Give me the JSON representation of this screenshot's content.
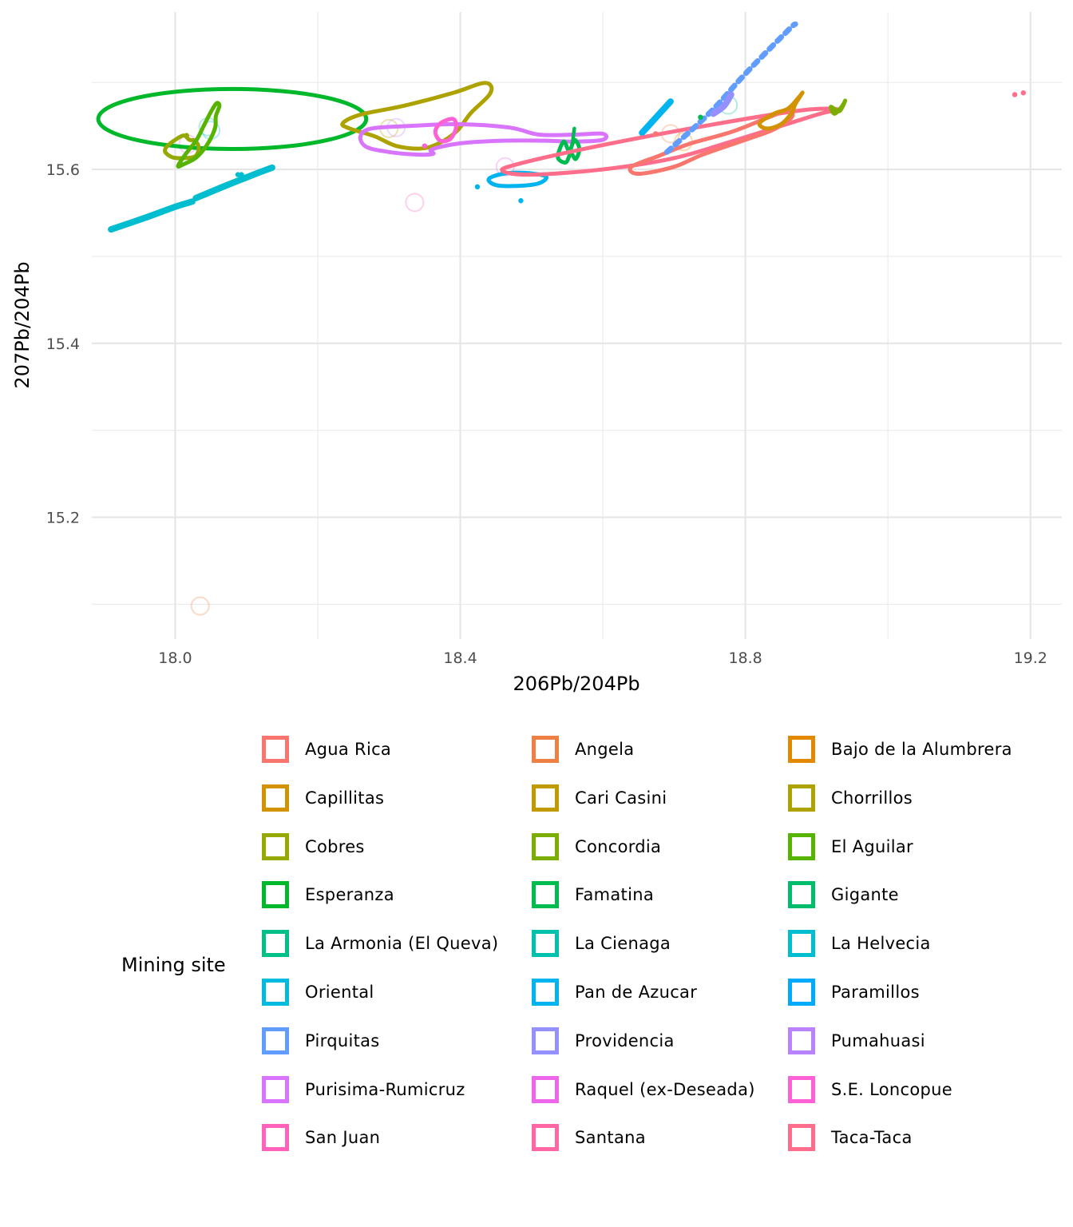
{
  "chart_data": {
    "type": "scatter",
    "subtype": "density-contour",
    "title": "",
    "xlabel": "206Pb/204Pb",
    "ylabel": "207Pb/204Pb",
    "xlim": [
      17.883,
      19.244
    ],
    "ylim": [
      15.06,
      15.781
    ],
    "x_ticks": [
      18.0,
      18.4,
      18.8,
      19.2
    ],
    "x_tick_labels": [
      "18.0",
      "18.4",
      "18.8",
      "19.2"
    ],
    "x_minor": [
      18.2,
      18.6,
      19.0
    ],
    "y_ticks": [
      15.2,
      15.4,
      15.6
    ],
    "y_tick_labels": [
      "15.2",
      "15.4",
      "15.6"
    ],
    "y_minor": [
      15.1,
      15.3,
      15.5,
      15.7
    ],
    "grid": true,
    "legend": {
      "title": "Mining site",
      "position": "bottom",
      "ncol": 3,
      "entries": [
        {
          "name": "Agua Rica",
          "color": "#F8766D"
        },
        {
          "name": "Angela",
          "color": "#EE8044"
        },
        {
          "name": "Bajo de la Alumbrera",
          "color": "#E38900"
        },
        {
          "name": "Capillitas",
          "color": "#D39200"
        },
        {
          "name": "Cari Casini",
          "color": "#C19A00"
        },
        {
          "name": "Chorrillos",
          "color": "#ADA200"
        },
        {
          "name": "Cobres",
          "color": "#95A900"
        },
        {
          "name": "Concordia",
          "color": "#7BAE00"
        },
        {
          "name": "El Aguilar",
          "color": "#56B300"
        },
        {
          "name": "Esperanza",
          "color": "#00B82A"
        },
        {
          "name": "Famatina",
          "color": "#00BB4E"
        },
        {
          "name": "Gigante",
          "color": "#00BD6A"
        },
        {
          "name": "La Armonia (El Queva)",
          "color": "#00BF87"
        },
        {
          "name": "La Cienaga",
          "color": "#00C0AE"
        },
        {
          "name": "La Helvecia",
          "color": "#00BDD0"
        },
        {
          "name": "Oriental",
          "color": "#00BAE0"
        },
        {
          "name": "Pan de Azucar",
          "color": "#00B4EF"
        },
        {
          "name": "Paramillos",
          "color": "#00ABFD"
        },
        {
          "name": "Pirquitas",
          "color": "#619CFF"
        },
        {
          "name": "Providencia",
          "color": "#9590FF"
        },
        {
          "name": "Pumahuasi",
          "color": "#B983FF"
        },
        {
          "name": "Purisima-Rumicruz",
          "color": "#D874FD"
        },
        {
          "name": "Raquel (ex-Deseada)",
          "color": "#EE67EB"
        },
        {
          "name": "S.E. Loncopue",
          "color": "#FC61D5"
        },
        {
          "name": "San Juan",
          "color": "#FF62BC"
        },
        {
          "name": "Santana",
          "color": "#FF67A4"
        },
        {
          "name": "Taca-Taca",
          "color": "#FE6E8A"
        }
      ]
    },
    "series": [
      {
        "name": "Esperanza",
        "kind": "ellipse",
        "center": [
          18.08,
          15.658
        ],
        "radii": [
          0.188,
          0.0345
        ]
      },
      {
        "name": "La Helvecia",
        "kind": "thick",
        "points": [
          [
            17.91,
            15.531
          ],
          [
            17.96,
            15.545
          ],
          [
            18.0,
            15.557
          ],
          [
            18.024,
            15.563
          ]
        ]
      },
      {
        "name": "La Helvecia",
        "kind": "thick",
        "points": [
          [
            18.029,
            15.567
          ],
          [
            18.07,
            15.581
          ],
          [
            18.11,
            15.594
          ],
          [
            18.136,
            15.602
          ]
        ]
      },
      {
        "name": "La Helvecia",
        "kind": "dot",
        "points": [
          [
            18.088,
            15.594
          ],
          [
            18.093,
            15.594
          ]
        ]
      },
      {
        "name": "Cobres",
        "kind": "loop",
        "points": [
          [
            17.988,
            15.626
          ],
          [
            18.0,
            15.634
          ],
          [
            18.012,
            15.639
          ],
          [
            18.02,
            15.634
          ],
          [
            18.028,
            15.633
          ],
          [
            18.033,
            15.625
          ],
          [
            18.028,
            15.615
          ],
          [
            18.012,
            15.613
          ],
          [
            17.996,
            15.614
          ],
          [
            17.986,
            15.62
          ],
          [
            17.988,
            15.626
          ]
        ]
      },
      {
        "name": "El Aguilar",
        "kind": "loop",
        "points": [
          [
            18.004,
            15.604
          ],
          [
            18.015,
            15.618
          ],
          [
            18.03,
            15.634
          ],
          [
            18.04,
            15.65
          ],
          [
            18.05,
            15.666
          ],
          [
            18.058,
            15.676
          ],
          [
            18.062,
            15.673
          ],
          [
            18.057,
            15.661
          ],
          [
            18.056,
            15.648
          ],
          [
            18.046,
            15.63
          ],
          [
            18.03,
            15.614
          ],
          [
            18.012,
            15.606
          ],
          [
            18.004,
            15.604
          ]
        ]
      },
      {
        "name": "Cobres",
        "kind": "dot",
        "points": [
          [
            18.016,
            15.639
          ]
        ]
      },
      {
        "name": "Chorrillos",
        "kind": "loop",
        "points": [
          [
            18.235,
            15.653
          ],
          [
            18.26,
            15.663
          ],
          [
            18.32,
            15.673
          ],
          [
            18.39,
            15.688
          ],
          [
            18.43,
            15.699
          ],
          [
            18.443,
            15.696
          ],
          [
            18.44,
            15.685
          ],
          [
            18.415,
            15.665
          ],
          [
            18.395,
            15.644
          ],
          [
            18.37,
            15.63
          ],
          [
            18.345,
            15.624
          ],
          [
            18.31,
            15.627
          ],
          [
            18.28,
            15.638
          ],
          [
            18.245,
            15.647
          ],
          [
            18.235,
            15.653
          ]
        ]
      },
      {
        "name": "Purisima-Rumicruz",
        "kind": "loop",
        "points": [
          [
            18.26,
            15.638
          ],
          [
            18.275,
            15.647
          ],
          [
            18.33,
            15.65
          ],
          [
            18.4,
            15.652
          ],
          [
            18.47,
            15.648
          ],
          [
            18.51,
            15.64
          ],
          [
            18.56,
            15.64
          ],
          [
            18.6,
            15.641
          ],
          [
            18.6,
            15.634
          ],
          [
            18.56,
            15.632
          ],
          [
            18.52,
            15.633
          ],
          [
            18.46,
            15.633
          ],
          [
            18.4,
            15.63
          ],
          [
            18.36,
            15.623
          ],
          [
            18.362,
            15.618
          ],
          [
            18.34,
            15.617
          ],
          [
            18.3,
            15.62
          ],
          [
            18.268,
            15.626
          ],
          [
            18.26,
            15.638
          ]
        ]
      },
      {
        "name": "S.E. Loncopue",
        "kind": "loop",
        "points": [
          [
            18.365,
            15.643
          ],
          [
            18.372,
            15.653
          ],
          [
            18.39,
            15.658
          ],
          [
            18.394,
            15.648
          ],
          [
            18.386,
            15.635
          ],
          [
            18.372,
            15.633
          ],
          [
            18.365,
            15.643
          ]
        ]
      },
      {
        "name": "S.E. Loncopue",
        "kind": "dot",
        "points": [
          [
            18.35,
            15.627
          ]
        ]
      },
      {
        "name": "Pan de Azucar",
        "kind": "loop",
        "points": [
          [
            18.44,
            15.589
          ],
          [
            18.46,
            15.595
          ],
          [
            18.49,
            15.596
          ],
          [
            18.52,
            15.592
          ],
          [
            18.51,
            15.584
          ],
          [
            18.48,
            15.581
          ],
          [
            18.45,
            15.582
          ],
          [
            18.44,
            15.589
          ]
        ]
      },
      {
        "name": "Pan de Azucar",
        "kind": "dot",
        "points": [
          [
            18.424,
            15.58
          ],
          [
            18.485,
            15.564
          ]
        ]
      },
      {
        "name": "Pan de Azucar",
        "kind": "thick",
        "points": [
          [
            18.655,
            15.642
          ],
          [
            18.675,
            15.66
          ],
          [
            18.695,
            15.678
          ]
        ]
      },
      {
        "name": "Famatina",
        "kind": "loop",
        "points": [
          [
            18.537,
            15.614
          ],
          [
            18.545,
            15.632
          ],
          [
            18.553,
            15.621
          ],
          [
            18.56,
            15.634
          ],
          [
            18.567,
            15.624
          ],
          [
            18.562,
            15.612
          ],
          [
            18.555,
            15.618
          ],
          [
            18.548,
            15.608
          ],
          [
            18.537,
            15.614
          ]
        ]
      },
      {
        "name": "Famatina",
        "kind": "line",
        "points": [
          [
            18.558,
            15.634
          ],
          [
            18.56,
            15.647
          ]
        ]
      },
      {
        "name": "Taca-Taca",
        "kind": "loop",
        "points": [
          [
            18.46,
            15.598
          ],
          [
            18.48,
            15.606
          ],
          [
            18.6,
            15.628
          ],
          [
            18.75,
            15.651
          ],
          [
            18.88,
            15.668
          ],
          [
            18.93,
            15.669
          ],
          [
            18.905,
            15.664
          ],
          [
            18.85,
            15.65
          ],
          [
            18.78,
            15.632
          ],
          [
            18.7,
            15.613
          ],
          [
            18.6,
            15.6
          ],
          [
            18.5,
            15.594
          ],
          [
            18.46,
            15.598
          ]
        ]
      },
      {
        "name": "Taca-Taca",
        "kind": "dot",
        "points": [
          [
            19.178,
            15.686
          ],
          [
            19.19,
            15.688
          ]
        ]
      },
      {
        "name": "Agua Rica",
        "kind": "loop",
        "points": [
          [
            18.64,
            15.603
          ],
          [
            18.68,
            15.616
          ],
          [
            18.72,
            15.629
          ],
          [
            18.78,
            15.643
          ],
          [
            18.83,
            15.659
          ],
          [
            18.86,
            15.668
          ],
          [
            18.865,
            15.66
          ],
          [
            18.84,
            15.646
          ],
          [
            18.8,
            15.634
          ],
          [
            18.74,
            15.617
          ],
          [
            18.7,
            15.603
          ],
          [
            18.65,
            15.595
          ],
          [
            18.64,
            15.603
          ]
        ]
      },
      {
        "name": "Agua Rica",
        "kind": "dot",
        "points": [
          [
            18.674,
            15.641
          ]
        ]
      },
      {
        "name": "Capillitas",
        "kind": "loop",
        "points": [
          [
            18.82,
            15.653
          ],
          [
            18.84,
            15.664
          ],
          [
            18.86,
            15.67
          ],
          [
            18.875,
            15.683
          ],
          [
            18.88,
            15.688
          ],
          [
            18.87,
            15.675
          ],
          [
            18.865,
            15.665
          ],
          [
            18.85,
            15.652
          ],
          [
            18.83,
            15.647
          ],
          [
            18.82,
            15.653
          ]
        ]
      },
      {
        "name": "Concordia",
        "kind": "loop",
        "points": [
          [
            18.92,
            15.672
          ],
          [
            18.932,
            15.667
          ],
          [
            18.94,
            15.679
          ],
          [
            18.935,
            15.672
          ],
          [
            18.925,
            15.664
          ],
          [
            18.92,
            15.672
          ]
        ]
      },
      {
        "name": "Pirquitas",
        "kind": "dashed",
        "points": [
          [
            18.69,
            15.62
          ],
          [
            18.75,
            15.665
          ],
          [
            18.8,
            15.71
          ],
          [
            18.86,
            15.76
          ],
          [
            18.87,
            15.767
          ]
        ]
      },
      {
        "name": "Providencia",
        "kind": "thick",
        "points": [
          [
            18.755,
            15.664
          ],
          [
            18.77,
            15.673
          ],
          [
            18.78,
            15.686
          ]
        ]
      },
      {
        "name": "Famatina",
        "kind": "dot",
        "points": [
          [
            18.737,
            15.66
          ]
        ]
      }
    ],
    "points": [
      {
        "name": "Angela",
        "x": 18.035,
        "y": 15.098
      },
      {
        "name": "San Juan",
        "x": 18.336,
        "y": 15.562
      },
      {
        "name": "Raquel (ex-Deseada)",
        "x": 18.463,
        "y": 15.603
      },
      {
        "name": "Cari Casini",
        "x": 18.3,
        "y": 15.647
      },
      {
        "name": "Pumahuasi",
        "x": 18.31,
        "y": 15.648
      },
      {
        "name": "La Cienaga",
        "x": 18.046,
        "y": 15.649
      },
      {
        "name": "Oriental",
        "x": 18.05,
        "y": 15.645
      },
      {
        "name": "Raquel (ex-Deseada)",
        "x": 18.018,
        "y": 15.629
      },
      {
        "name": "La Armonia (El Queva)",
        "x": 18.776,
        "y": 15.674
      },
      {
        "name": "Angela",
        "x": 18.695,
        "y": 15.641
      },
      {
        "name": "Bajo de la Alumbrera",
        "x": 18.713,
        "y": 15.632
      }
    ]
  }
}
